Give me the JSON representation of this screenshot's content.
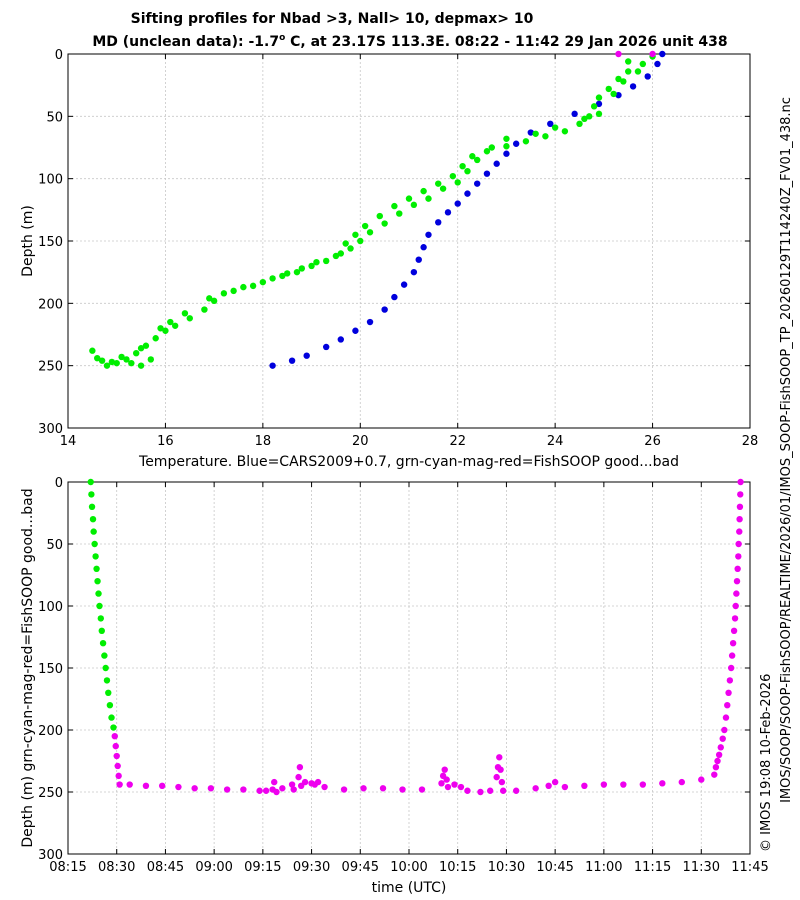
{
  "figure": {
    "title_line1": "Sifting profiles for Nbad >3, Nall> 10, depmax> 10",
    "title_line2_prefix": "MD (unclean data): -1.7",
    "title_line2_degree": "o",
    "title_line2_suffix": " C, at 23.17S 113.3E. 08:22 - 11:42 29 Jan 2026 unit 438",
    "side_label_outer": "IMOS/SOOP/SOOP-FishSOOP/REALTIME/2026/01/IMOS_SOOP-FishSOOP_TP_20260129T114240Z_FV01_438.nc",
    "side_label_inner": "© IMOS 19:08 10-Feb-2026"
  },
  "colors": {
    "cars": "#0000dd",
    "good": "#00ee00",
    "bad": "#ee00ee"
  },
  "chart_data": [
    {
      "type": "scatter",
      "xlabel": "Temperature. Blue=CARS2009+0.7, grn-cyan-mag-red=FishSOOP good...bad",
      "ylabel": "Depth (m)",
      "xlim": [
        14,
        28
      ],
      "ylim": [
        0,
        300
      ],
      "y_inverted": true,
      "grid": true,
      "xticks": [
        14,
        16,
        18,
        20,
        22,
        24,
        26,
        28
      ],
      "yticks": [
        0,
        50,
        100,
        150,
        200,
        250,
        300
      ],
      "xtick_labels": [
        "14",
        "16",
        "18",
        "20",
        "22",
        "24",
        "26",
        "28"
      ],
      "ytick_labels": [
        "0",
        "50",
        "100",
        "150",
        "200",
        "250",
        "300"
      ],
      "series": [
        {
          "color_key": "cars",
          "points": [
            [
              26.2,
              0
            ],
            [
              26.1,
              8
            ],
            [
              25.9,
              18
            ],
            [
              25.6,
              26
            ],
            [
              25.3,
              33
            ],
            [
              24.9,
              40
            ],
            [
              24.4,
              48
            ],
            [
              23.9,
              56
            ],
            [
              23.5,
              63
            ],
            [
              23.2,
              72
            ],
            [
              23.0,
              80
            ],
            [
              22.8,
              88
            ],
            [
              22.6,
              96
            ],
            [
              22.4,
              104
            ],
            [
              22.2,
              112
            ],
            [
              22.0,
              120
            ],
            [
              21.8,
              127
            ],
            [
              21.6,
              135
            ],
            [
              21.4,
              145
            ],
            [
              21.3,
              155
            ],
            [
              21.2,
              165
            ],
            [
              21.1,
              175
            ],
            [
              20.9,
              185
            ],
            [
              20.7,
              195
            ],
            [
              20.5,
              205
            ],
            [
              20.2,
              215
            ],
            [
              19.9,
              222
            ],
            [
              19.6,
              229
            ],
            [
              19.3,
              235
            ],
            [
              18.9,
              242
            ],
            [
              18.6,
              246
            ],
            [
              18.2,
              250
            ]
          ]
        },
        {
          "color_key": "good",
          "points": [
            [
              26.0,
              2
            ],
            [
              25.8,
              8
            ],
            [
              25.5,
              14
            ],
            [
              25.3,
              20
            ],
            [
              25.1,
              28
            ],
            [
              24.9,
              35
            ],
            [
              24.8,
              42
            ],
            [
              24.7,
              50
            ],
            [
              24.5,
              56
            ],
            [
              24.2,
              62
            ],
            [
              23.8,
              66
            ],
            [
              23.4,
              70
            ],
            [
              23.0,
              74
            ],
            [
              22.6,
              78
            ],
            [
              22.3,
              82
            ],
            [
              22.1,
              90
            ],
            [
              21.9,
              98
            ],
            [
              21.6,
              104
            ],
            [
              21.3,
              110
            ],
            [
              21.0,
              116
            ],
            [
              20.7,
              122
            ],
            [
              20.4,
              130
            ],
            [
              20.1,
              138
            ],
            [
              19.9,
              145
            ],
            [
              19.7,
              152
            ],
            [
              19.6,
              160
            ],
            [
              19.3,
              166
            ],
            [
              19.0,
              170
            ],
            [
              18.7,
              175
            ],
            [
              18.4,
              178
            ],
            [
              18.0,
              183
            ],
            [
              17.6,
              187
            ],
            [
              17.2,
              192
            ],
            [
              17.0,
              198
            ],
            [
              16.8,
              205
            ],
            [
              16.5,
              212
            ],
            [
              16.2,
              218
            ],
            [
              16.0,
              222
            ],
            [
              15.8,
              228
            ],
            [
              15.6,
              234
            ],
            [
              15.4,
              240
            ],
            [
              15.2,
              245
            ],
            [
              15.0,
              248
            ],
            [
              14.8,
              250
            ],
            [
              14.6,
              244
            ],
            [
              14.5,
              238
            ],
            [
              14.9,
              247
            ],
            [
              15.5,
              250
            ],
            [
              15.7,
              245
            ],
            [
              15.3,
              248
            ],
            [
              25.5,
              6
            ],
            [
              25.7,
              14
            ],
            [
              25.4,
              22
            ],
            [
              25.2,
              32
            ],
            [
              24.9,
              48
            ],
            [
              24.6,
              52
            ],
            [
              24.0,
              59
            ],
            [
              23.6,
              64
            ],
            [
              23.0,
              68
            ],
            [
              22.7,
              75
            ],
            [
              22.4,
              85
            ],
            [
              22.2,
              94
            ],
            [
              22.0,
              103
            ],
            [
              21.7,
              108
            ],
            [
              21.4,
              116
            ],
            [
              21.1,
              121
            ],
            [
              20.8,
              128
            ],
            [
              20.5,
              136
            ],
            [
              20.2,
              143
            ],
            [
              20.0,
              150
            ],
            [
              19.8,
              156
            ],
            [
              19.5,
              162
            ],
            [
              19.1,
              167
            ],
            [
              18.8,
              172
            ],
            [
              18.5,
              176
            ],
            [
              18.2,
              180
            ],
            [
              17.8,
              186
            ],
            [
              17.4,
              190
            ],
            [
              16.9,
              196
            ],
            [
              16.4,
              208
            ],
            [
              16.1,
              215
            ],
            [
              15.9,
              220
            ],
            [
              15.5,
              236
            ],
            [
              15.1,
              243
            ],
            [
              14.7,
              246
            ]
          ]
        },
        {
          "color_key": "bad",
          "points": [
            [
              25.3,
              0
            ],
            [
              26.0,
              0
            ]
          ]
        }
      ]
    },
    {
      "type": "scatter",
      "xlabel": "time (UTC)",
      "ylabel": "Depth (m) grn-cyan-mag-red=FishSOOP good...bad",
      "xlim": [
        495,
        705
      ],
      "ylim": [
        0,
        300
      ],
      "y_inverted": true,
      "grid": true,
      "xticks": [
        495,
        510,
        525,
        540,
        555,
        570,
        585,
        600,
        615,
        630,
        645,
        660,
        675,
        690,
        705
      ],
      "xtick_labels": [
        "08:15",
        "08:30",
        "08:45",
        "09:00",
        "09:15",
        "09:30",
        "09:45",
        "10:00",
        "10:15",
        "10:30",
        "10:45",
        "11:00",
        "11:15",
        "11:30",
        "11:45"
      ],
      "yticks": [
        0,
        50,
        100,
        150,
        200,
        250,
        300
      ],
      "ytick_labels": [
        "0",
        "50",
        "100",
        "150",
        "200",
        "250",
        "300"
      ],
      "series": [
        {
          "color_key": "good",
          "points": [
            [
              502.0,
              0
            ],
            [
              502.2,
              10
            ],
            [
              502.4,
              20
            ],
            [
              502.7,
              30
            ],
            [
              502.9,
              40
            ],
            [
              503.2,
              50
            ],
            [
              503.5,
              60
            ],
            [
              503.8,
              70
            ],
            [
              504.1,
              80
            ],
            [
              504.4,
              90
            ],
            [
              504.7,
              100
            ],
            [
              505.1,
              110
            ],
            [
              505.4,
              120
            ],
            [
              505.8,
              130
            ],
            [
              506.2,
              140
            ],
            [
              506.6,
              150
            ],
            [
              507.0,
              160
            ],
            [
              507.4,
              170
            ],
            [
              507.9,
              180
            ],
            [
              508.4,
              190
            ],
            [
              509.0,
              198
            ]
          ]
        },
        {
          "color_key": "bad",
          "points": [
            [
              509.4,
              205
            ],
            [
              509.7,
              213
            ],
            [
              510.0,
              221
            ],
            [
              510.3,
              229
            ],
            [
              510.6,
              237
            ],
            [
              510.9,
              244
            ],
            [
              514,
              244
            ],
            [
              519,
              245
            ],
            [
              524,
              245
            ],
            [
              529,
              246
            ],
            [
              534,
              247
            ],
            [
              539,
              247
            ],
            [
              544,
              248
            ],
            [
              549,
              248
            ],
            [
              554,
              249
            ],
            [
              556,
              249
            ],
            [
              558,
              248
            ],
            [
              558.5,
              242
            ],
            [
              559.2,
              250
            ],
            [
              561,
              247
            ],
            [
              564,
              244
            ],
            [
              564.5,
              248
            ],
            [
              566,
              238
            ],
            [
              566.4,
              230
            ],
            [
              566.8,
              245
            ],
            [
              568,
              242
            ],
            [
              570,
              243
            ],
            [
              571,
              244
            ],
            [
              572,
              242
            ],
            [
              574,
              246
            ],
            [
              580,
              248
            ],
            [
              586,
              247
            ],
            [
              592,
              247
            ],
            [
              598,
              248
            ],
            [
              604,
              248
            ],
            [
              610,
              243
            ],
            [
              610.5,
              237
            ],
            [
              611,
              232
            ],
            [
              611.6,
              240
            ],
            [
              612,
              246
            ],
            [
              614,
              244
            ],
            [
              616,
              246
            ],
            [
              618,
              249
            ],
            [
              622,
              250
            ],
            [
              625,
              249
            ],
            [
              627,
              238
            ],
            [
              627.4,
              230
            ],
            [
              627.8,
              222
            ],
            [
              628.2,
              232
            ],
            [
              628.6,
              242
            ],
            [
              629,
              249
            ],
            [
              633,
              249
            ],
            [
              639,
              247
            ],
            [
              643,
              245
            ],
            [
              645,
              242
            ],
            [
              648,
              246
            ],
            [
              654,
              245
            ],
            [
              660,
              244
            ],
            [
              666,
              244
            ],
            [
              672,
              244
            ],
            [
              678,
              243
            ],
            [
              684,
              242
            ],
            [
              690,
              240
            ],
            [
              694,
              236
            ],
            [
              694.5,
              230
            ],
            [
              695,
              225
            ],
            [
              695.5,
              220
            ],
            [
              696,
              214
            ],
            [
              696.6,
              207
            ],
            [
              697.1,
              200
            ],
            [
              697.6,
              190
            ],
            [
              698.0,
              180
            ],
            [
              698.4,
              170
            ],
            [
              698.8,
              160
            ],
            [
              699.2,
              150
            ],
            [
              699.5,
              140
            ],
            [
              699.8,
              130
            ],
            [
              700.1,
              120
            ],
            [
              700.4,
              110
            ],
            [
              700.6,
              100
            ],
            [
              700.8,
              90
            ],
            [
              701.0,
              80
            ],
            [
              701.2,
              70
            ],
            [
              701.4,
              60
            ],
            [
              701.5,
              50
            ],
            [
              701.7,
              40
            ],
            [
              701.8,
              30
            ],
            [
              701.9,
              20
            ],
            [
              702.0,
              10
            ],
            [
              702.1,
              0
            ]
          ]
        }
      ]
    }
  ]
}
